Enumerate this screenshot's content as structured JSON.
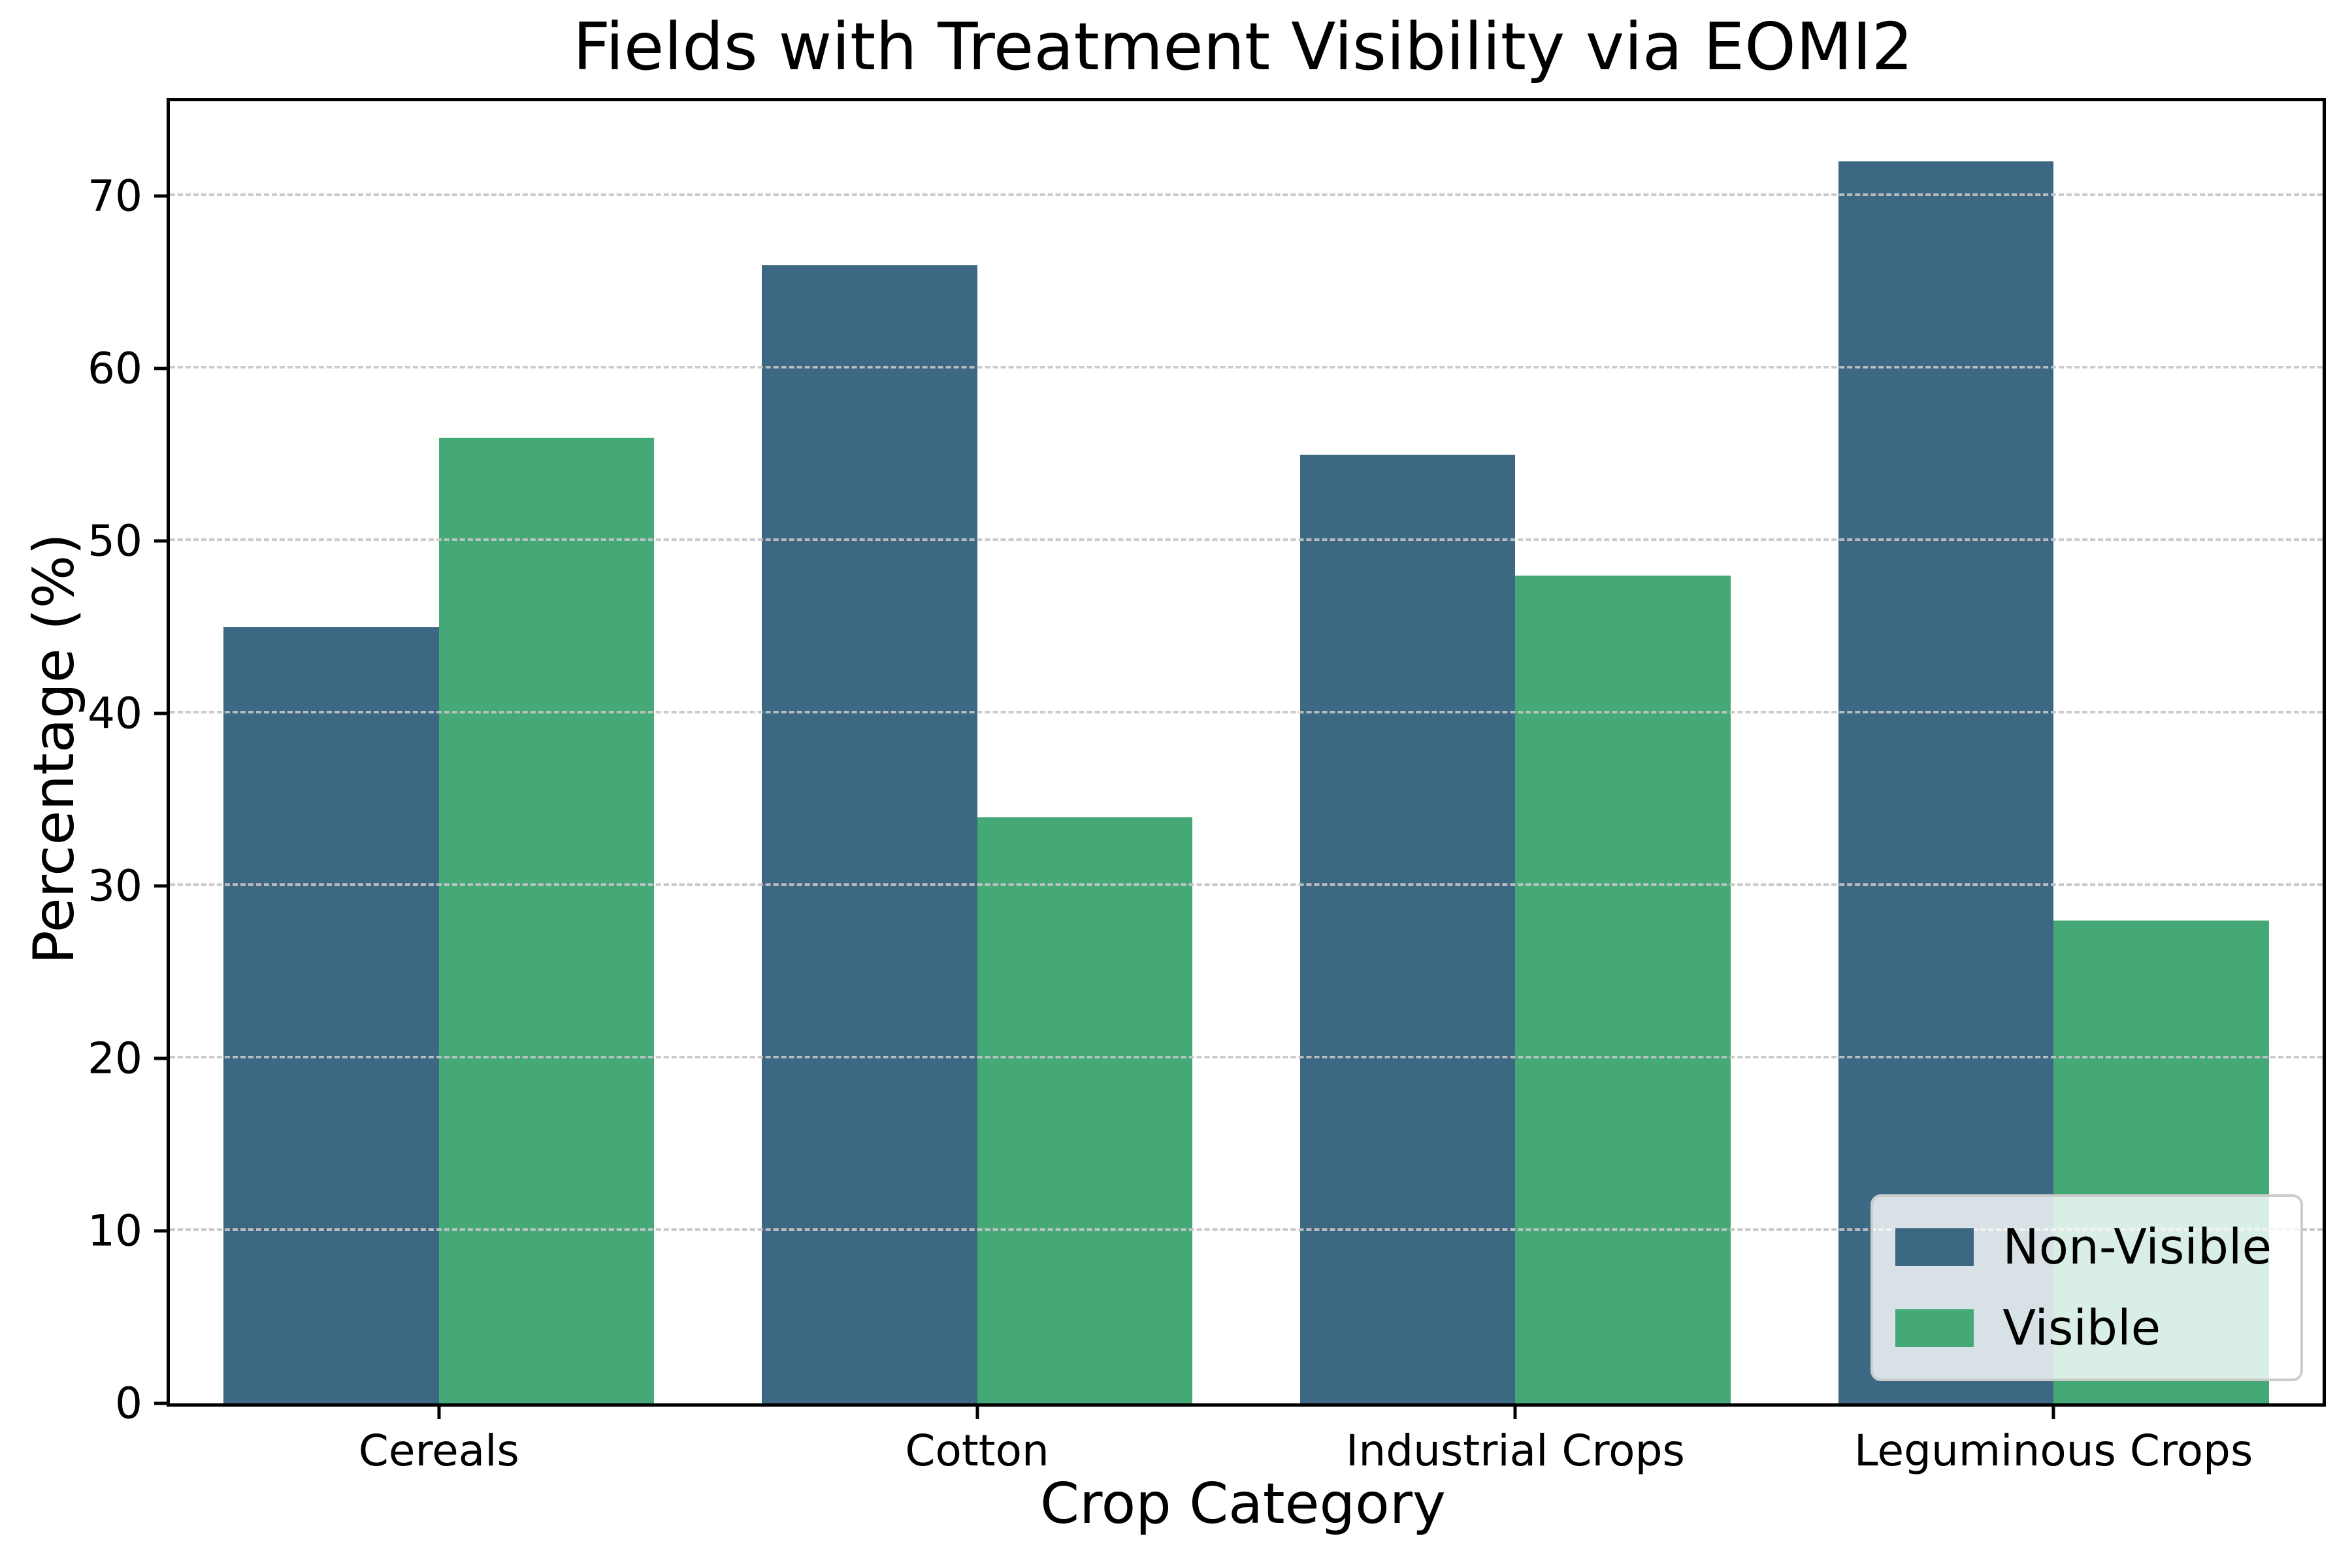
{
  "title": "Fields with Treatment Visibility via EOMI2",
  "x_axis": {
    "label": "Crop Category"
  },
  "y_axis": {
    "label": "Percentage (%)"
  },
  "legend": {
    "position": "lower right"
  },
  "colors": {
    "non_visible": "#3D6883",
    "visible": "#44A877",
    "grid": "#c6c6c6",
    "spine": "#000000"
  },
  "chart_data": {
    "type": "bar",
    "title": "Fields with Treatment Visibility via EOMI2",
    "xlabel": "Crop Category",
    "ylabel": "Percentage (%)",
    "categories": [
      "Cereals",
      "Cotton",
      "Industrial Crops",
      "Leguminous Crops"
    ],
    "series": [
      {
        "name": "Non-Visible",
        "color": "#3D6883",
        "values": [
          45,
          66,
          55,
          72
        ]
      },
      {
        "name": "Visible",
        "color": "#44A877",
        "values": [
          56,
          34,
          48,
          28
        ]
      }
    ],
    "yticks": [
      0,
      10,
      20,
      30,
      40,
      50,
      60,
      70
    ],
    "ylim": [
      0,
      75.5
    ],
    "grid": "dashed-horizontal",
    "legend_position": "lower right"
  }
}
